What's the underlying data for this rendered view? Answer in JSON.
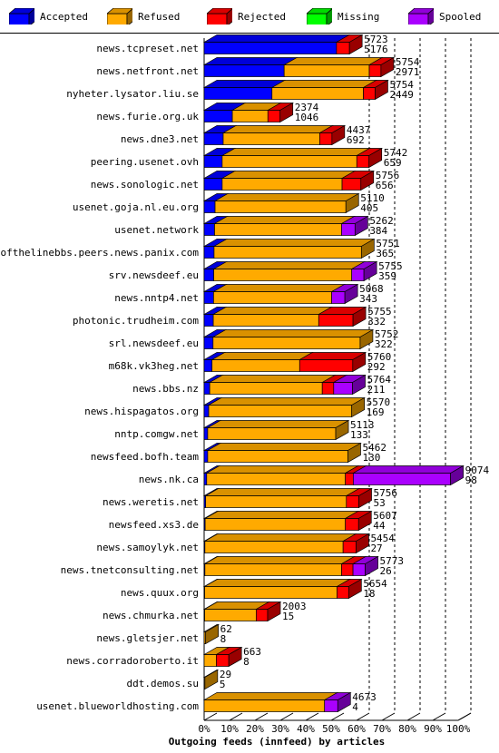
{
  "legend": [
    {
      "name": "Accepted",
      "color": "#0000ff"
    },
    {
      "name": "Refused",
      "color": "#ffaa00"
    },
    {
      "name": "Rejected",
      "color": "#ff0000"
    },
    {
      "name": "Missing",
      "color": "#00ff00"
    },
    {
      "name": "Spooled",
      "color": "#aa00ff"
    }
  ],
  "chart_data": {
    "type": "bar",
    "orientation": "horizontal",
    "stacked": true,
    "title": "Outgoing feeds (innfeed) by articles",
    "xlabel": "",
    "ylabel": "",
    "xlim": [
      0,
      100
    ],
    "x_unit": "%",
    "x_ticks": [
      "0%",
      "10%",
      "20%",
      "30%",
      "40%",
      "50%",
      "60%",
      "70%",
      "80%",
      "90%",
      "100%"
    ],
    "grid": "vertical dashed lines from 60% to 100%",
    "legend_position": "top",
    "categories": [
      "news.tcpreset.net",
      "news.netfront.net",
      "nyheter.lysator.liu.se",
      "news.furie.org.uk",
      "news.dne3.net",
      "peering.usenet.ovh",
      "news.sonologic.net",
      "usenet.goja.nl.eu.org",
      "usenet.network",
      "endofthelinebbs.peers.news.panix.com",
      "srv.newsdeef.eu",
      "news.nntp4.net",
      "photonic.trudheim.com",
      "srl.newsdeef.eu",
      "m68k.vk3heg.net",
      "news.bbs.nz",
      "news.hispagatos.org",
      "nntp.comgw.net",
      "newsfeed.bofh.team",
      "news.nk.ca",
      "news.weretis.net",
      "newsfeed.xs3.de",
      "news.samoylyk.net",
      "news.tnetconsulting.net",
      "news.quux.org",
      "news.chmurka.net",
      "news.gletsjer.net",
      "news.corradoroberto.it",
      "ddt.demos.su",
      "usenet.blueworldhosting.com"
    ],
    "offered_articles": [
      5723,
      5754,
      5754,
      2374,
      4437,
      5742,
      5756,
      5110,
      5262,
      5751,
      5755,
      5068,
      5755,
      5752,
      5760,
      5764,
      5570,
      5113,
      5462,
      9074,
      5756,
      5607,
      5454,
      5773,
      5654,
      2003,
      62,
      663,
      29,
      4673
    ],
    "accepted_articles": [
      5176,
      2971,
      2449,
      1046,
      692,
      659,
      656,
      405,
      384,
      365,
      359,
      343,
      332,
      322,
      292,
      211,
      169,
      133,
      130,
      98,
      53,
      44,
      27,
      26,
      18,
      15,
      8,
      8,
      5,
      4
    ],
    "series": [
      {
        "name": "Accepted",
        "values": [
          52.1,
          31.5,
          26.7,
          11.1,
          7.5,
          7.1,
          7.1,
          4.3,
          4.1,
          3.9,
          3.8,
          3.7,
          3.6,
          3.5,
          3.1,
          2.2,
          1.8,
          1.4,
          1.4,
          1.0,
          0.6,
          0.4,
          0.3,
          0.3,
          0.2,
          0.2,
          0.0,
          0.0,
          0.0,
          0.0
        ]
      },
      {
        "name": "Refused",
        "values": [
          0.0,
          33.5,
          36.0,
          14.0,
          38.0,
          53.0,
          47.2,
          51.5,
          50.0,
          58.0,
          54.3,
          46.5,
          41.5,
          57.9,
          34.5,
          44.3,
          56.3,
          50.4,
          55.2,
          54.6,
          55.4,
          55.2,
          54.4,
          53.8,
          52.1,
          20.3,
          0.6,
          4.8,
          0.3,
          47.4
        ]
      },
      {
        "name": "Rejected",
        "values": [
          5.1,
          4.6,
          4.6,
          4.8,
          4.8,
          4.8,
          7.4,
          0.0,
          0.0,
          0.0,
          0.0,
          0.0,
          13.5,
          0.0,
          20.9,
          4.5,
          0.0,
          0.0,
          0.0,
          3.1,
          4.9,
          5.2,
          5.1,
          4.5,
          4.6,
          4.5,
          0.0,
          4.9,
          0.0,
          0.0
        ]
      },
      {
        "name": "Missing",
        "values": [
          0,
          0,
          0,
          0,
          0,
          0,
          0,
          0,
          0,
          0,
          0,
          0,
          0,
          0,
          0,
          0,
          0,
          0,
          0,
          0,
          0,
          0,
          0,
          0,
          0,
          0,
          0,
          0,
          0,
          0
        ]
      },
      {
        "name": "Spooled",
        "values": [
          0.0,
          0.0,
          0.0,
          0.0,
          0.0,
          0.0,
          0.0,
          0.0,
          5.3,
          0.0,
          4.8,
          5.2,
          0.0,
          0.0,
          0.0,
          7.4,
          0.0,
          0.0,
          0.0,
          38.3,
          0.0,
          0.0,
          0.0,
          4.8,
          0.0,
          0.0,
          0.0,
          0.0,
          0.0,
          5.2
        ]
      }
    ]
  }
}
